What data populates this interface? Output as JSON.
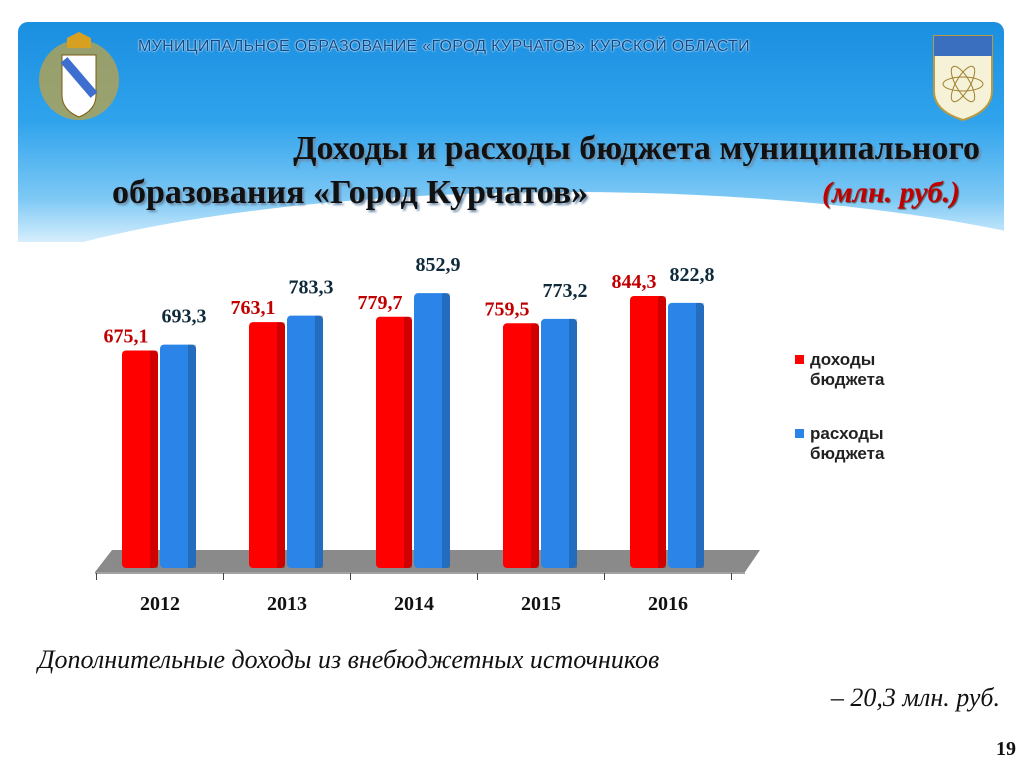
{
  "header": {
    "org": "МУНИЦИПАЛЬНОЕ  ОБРАЗОВАНИЕ  «ГОРОД КУРЧАТОВ»  КУРСКОЙ  ОБЛАСТИ",
    "title_line1": "Доходы и расходы бюджета муниципального",
    "title_line2": "образования «Город Курчатов»",
    "unit": "(млн. руб.)"
  },
  "chart_data": {
    "type": "bar",
    "categories": [
      "2012",
      "2013",
      "2014",
      "2015",
      "2016"
    ],
    "series": [
      {
        "name": "доходы бюджета",
        "values": [
          675.1,
          763.1,
          779.7,
          759.5,
          844.3
        ],
        "labels": [
          "675,1",
          "763,1",
          "779,7",
          "759,5",
          "844,3"
        ],
        "color": "#ff0000",
        "label_color": "#c00000"
      },
      {
        "name": "расходы бюджета",
        "values": [
          693.3,
          783.3,
          852.9,
          773.2,
          822.8
        ],
        "labels": [
          "693,3",
          "783,3",
          "852,9",
          "773,2",
          "822,8"
        ],
        "color": "#2b84e8",
        "label_color": "#0f2a3a"
      }
    ],
    "legend": [
      "доходы\nбюджета",
      "расходы\nбюджета"
    ],
    "legend_lines": [
      [
        "доходы",
        "бюджета"
      ],
      [
        "расходы",
        "бюджета"
      ]
    ],
    "legend_position": "right",
    "ylim": [
      0,
      900
    ],
    "grid": false
  },
  "footer": {
    "line1": "Дополнительные доходы из внебюджетных источников",
    "line2": "– 20,3 млн. руб.",
    "page": "19"
  }
}
